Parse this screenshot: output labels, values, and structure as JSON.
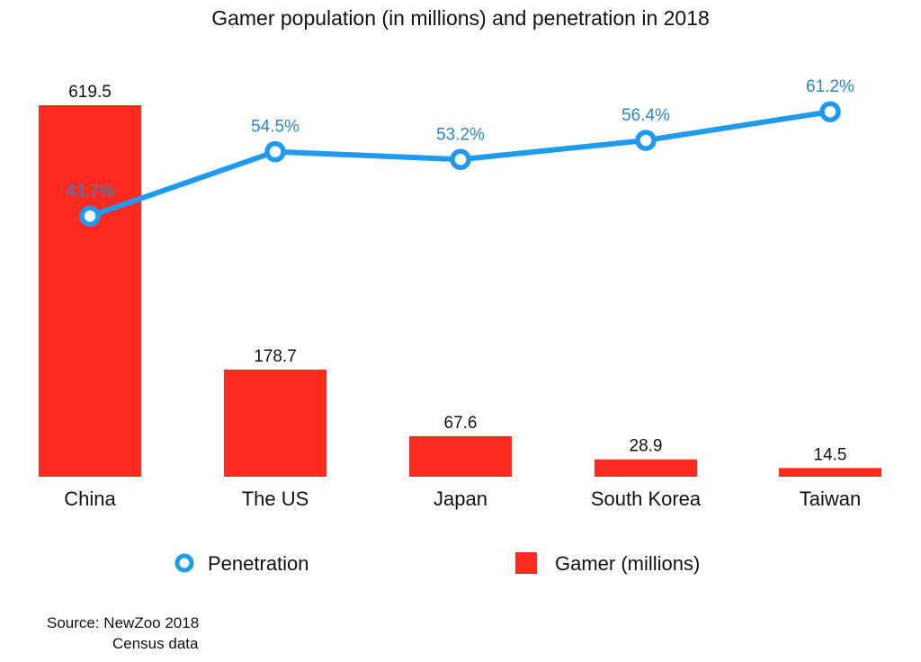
{
  "chart_data": {
    "type": "bar+line",
    "title": "Gamer population (in millions) and penetration in 2018",
    "categories": [
      "China",
      "The US",
      "Japan",
      "South Korea",
      "Taiwan"
    ],
    "series": [
      {
        "name": "Gamer (millions)",
        "type": "bar",
        "values": [
          619.5,
          178.7,
          67.6,
          28.9,
          14.5
        ],
        "labels": [
          "619.5",
          "178.7",
          "67.6",
          "28.9",
          "14.5"
        ],
        "color": "#ff2a1f"
      },
      {
        "name": "Penetration",
        "type": "line",
        "values": [
          43.7,
          54.5,
          53.2,
          56.4,
          61.2
        ],
        "labels": [
          "43.7%",
          "54.5%",
          "53.2%",
          "56.4%",
          "61.2%"
        ],
        "color": "#1e9bee"
      }
    ],
    "legend_position": "bottom",
    "grid": false,
    "axes_visible": false
  },
  "source": {
    "line1": "Source: NewZoo 2018",
    "line2": "Census data"
  }
}
